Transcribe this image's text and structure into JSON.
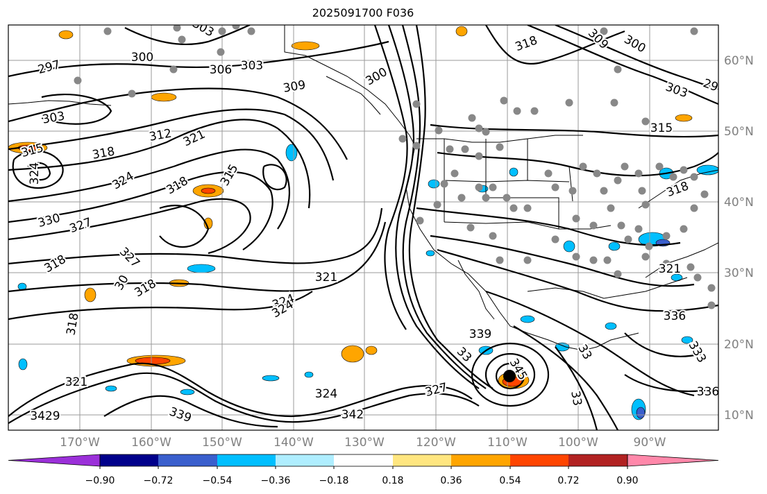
{
  "title": "2025091700 F036",
  "lat_labels": [
    "60°N",
    "50°N",
    "40°N",
    "30°N",
    "20°N",
    "10°N"
  ],
  "lon_labels": [
    "170°W",
    "160°W",
    "150°W",
    "140°W",
    "130°W",
    "120°W",
    "110°W",
    "100°W",
    "90°W"
  ],
  "colorbar": {
    "ticks": [
      "−0.90",
      "−0.72",
      "−0.54",
      "−0.36",
      "−0.18",
      "0.18",
      "0.36",
      "0.54",
      "0.72",
      "0.90"
    ],
    "colors": [
      "#9b30d9",
      "#00008b",
      "#3a5fcd",
      "#00bfff",
      "#afeeff",
      "#ffffff",
      "#ffe680",
      "#ffa500",
      "#ff4500",
      "#b22222",
      "#ff88aa"
    ]
  },
  "contour_labels": [
    {
      "t": "303"
    },
    {
      "t": "300"
    },
    {
      "t": "297"
    },
    {
      "t": "306"
    },
    {
      "t": "303"
    },
    {
      "t": "309"
    },
    {
      "t": "300"
    },
    {
      "t": "318"
    },
    {
      "t": "309"
    },
    {
      "t": "300"
    },
    {
      "t": "303"
    },
    {
      "t": "29"
    },
    {
      "t": "303"
    },
    {
      "t": "312"
    },
    {
      "t": "321"
    },
    {
      "t": "315"
    },
    {
      "t": "318"
    },
    {
      "t": "315"
    },
    {
      "t": "324"
    },
    {
      "t": "324"
    },
    {
      "t": "318"
    },
    {
      "t": "315"
    },
    {
      "t": "318"
    },
    {
      "t": "330"
    },
    {
      "t": "327"
    },
    {
      "t": "318"
    },
    {
      "t": "327"
    },
    {
      "t": "318"
    },
    {
      "t": "30"
    },
    {
      "t": "321"
    },
    {
      "t": "324"
    },
    {
      "t": "324"
    },
    {
      "t": "318"
    },
    {
      "t": "321"
    },
    {
      "t": "339"
    },
    {
      "t": "33"
    },
    {
      "t": "345"
    },
    {
      "t": "33"
    },
    {
      "t": "327"
    },
    {
      "t": "321"
    },
    {
      "t": "324"
    },
    {
      "t": "339"
    },
    {
      "t": "342"
    },
    {
      "t": "3429"
    },
    {
      "t": "336"
    },
    {
      "t": "336"
    },
    {
      "t": "333"
    },
    {
      "t": "33"
    }
  ]
}
